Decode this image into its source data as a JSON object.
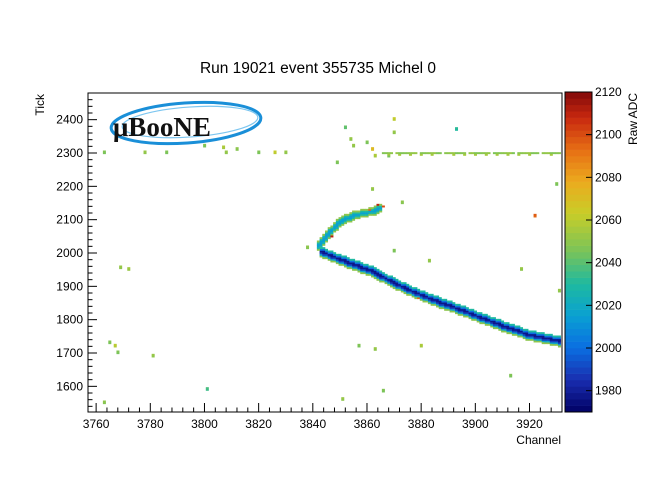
{
  "chart_data": {
    "type": "heatmap",
    "title": "Run 19021 event 355735 Michel 0",
    "xlabel": "Channel",
    "ylabel": "Tick",
    "zlabel": "Raw ADC",
    "xlim": [
      3757,
      3932
    ],
    "ylim": [
      1523,
      2480
    ],
    "zlim": [
      1970,
      2120
    ],
    "x_ticks": [
      3760,
      3780,
      3800,
      3820,
      3840,
      3860,
      3880,
      3900,
      3920
    ],
    "y_ticks": [
      1600,
      1700,
      1800,
      1900,
      2000,
      2100,
      2200,
      2300,
      2400
    ],
    "z_ticks": [
      1980,
      2000,
      2020,
      2040,
      2060,
      2080,
      2100,
      2120
    ],
    "grid": false,
    "logo": "μBooNE",
    "tracks": [
      {
        "name": "muon-track",
        "points": [
          [
            3843,
            2005
          ],
          [
            3852,
            1975
          ],
          [
            3862,
            1945
          ],
          [
            3874,
            1895
          ],
          [
            3886,
            1855
          ],
          [
            3898,
            1820
          ],
          [
            3910,
            1782
          ],
          [
            3920,
            1755
          ],
          [
            3932,
            1735
          ]
        ],
        "halfwidth": 14,
        "core_adc": 1975,
        "edge_adc": 2050
      },
      {
        "name": "michel-electron-track",
        "points": [
          [
            3842,
            2020
          ],
          [
            3846,
            2060
          ],
          [
            3850,
            2095
          ],
          [
            3856,
            2115
          ],
          [
            3862,
            2125
          ],
          [
            3865,
            2135
          ]
        ],
        "halfwidth": 10,
        "core_adc": 2015,
        "edge_adc": 2050
      }
    ],
    "band": {
      "y": 2300,
      "x_from": 3866,
      "x_to": 3932,
      "adc": 2052
    },
    "hot_pixels": [
      {
        "x": 3847,
        "y": 2049,
        "adc": 2110
      },
      {
        "x": 3864,
        "y": 2143,
        "adc": 2110
      },
      {
        "x": 3866,
        "y": 2140,
        "adc": 2100
      },
      {
        "x": 3861,
        "y": 2129,
        "adc": 2095
      },
      {
        "x": 3874,
        "y": 1895,
        "adc": 2110
      },
      {
        "x": 3865,
        "y": 1930,
        "adc": 2100
      },
      {
        "x": 3879,
        "y": 1866,
        "adc": 2095
      }
    ],
    "noise": [
      {
        "x": 3763,
        "y": 2300,
        "adc": 2045
      },
      {
        "x": 3778,
        "y": 2300,
        "adc": 2050
      },
      {
        "x": 3786,
        "y": 2300,
        "adc": 2045
      },
      {
        "x": 3800,
        "y": 2318,
        "adc": 2045
      },
      {
        "x": 3807,
        "y": 2314,
        "adc": 2055
      },
      {
        "x": 3808,
        "y": 2300,
        "adc": 2050
      },
      {
        "x": 3812,
        "y": 2310,
        "adc": 2048
      },
      {
        "x": 3820,
        "y": 2300,
        "adc": 2045
      },
      {
        "x": 3826,
        "y": 2300,
        "adc": 2060
      },
      {
        "x": 3830,
        "y": 2300,
        "adc": 2050
      },
      {
        "x": 3852,
        "y": 2375,
        "adc": 2040
      },
      {
        "x": 3854,
        "y": 2338,
        "adc": 2050
      },
      {
        "x": 3855,
        "y": 2320,
        "adc": 2050
      },
      {
        "x": 3860,
        "y": 2328,
        "adc": 2045
      },
      {
        "x": 3862,
        "y": 2310,
        "adc": 2070
      },
      {
        "x": 3863,
        "y": 2290,
        "adc": 2055
      },
      {
        "x": 3868,
        "y": 2292,
        "adc": 2045
      },
      {
        "x": 3870,
        "y": 2400,
        "adc": 2060
      },
      {
        "x": 3870,
        "y": 2360,
        "adc": 2050
      },
      {
        "x": 3849,
        "y": 2270,
        "adc": 2045
      },
      {
        "x": 3893,
        "y": 2370,
        "adc": 2030
      },
      {
        "x": 3862,
        "y": 2192,
        "adc": 2050
      },
      {
        "x": 3873,
        "y": 2152,
        "adc": 2048
      },
      {
        "x": 3870,
        "y": 2005,
        "adc": 2045
      },
      {
        "x": 3883,
        "y": 1975,
        "adc": 2050
      },
      {
        "x": 3838,
        "y": 2015,
        "adc": 2048
      },
      {
        "x": 3769,
        "y": 1955,
        "adc": 2050
      },
      {
        "x": 3772,
        "y": 1950,
        "adc": 2052
      },
      {
        "x": 3765,
        "y": 1730,
        "adc": 2045
      },
      {
        "x": 3767,
        "y": 1718,
        "adc": 2058
      },
      {
        "x": 3768,
        "y": 1700,
        "adc": 2045
      },
      {
        "x": 3781,
        "y": 1690,
        "adc": 2050
      },
      {
        "x": 3801,
        "y": 1592,
        "adc": 2035
      },
      {
        "x": 3763,
        "y": 1550,
        "adc": 2048
      },
      {
        "x": 3851,
        "y": 1562,
        "adc": 2050
      },
      {
        "x": 3857,
        "y": 1718,
        "adc": 2045
      },
      {
        "x": 3863,
        "y": 1710,
        "adc": 2050
      },
      {
        "x": 3866,
        "y": 1583,
        "adc": 2045
      },
      {
        "x": 3880,
        "y": 1720,
        "adc": 2055
      },
      {
        "x": 3913,
        "y": 1630,
        "adc": 2045
      },
      {
        "x": 3917,
        "y": 1950,
        "adc": 2050
      },
      {
        "x": 3922,
        "y": 2108,
        "adc": 2095
      },
      {
        "x": 3930,
        "y": 2205,
        "adc": 2045
      },
      {
        "x": 3931,
        "y": 1885,
        "adc": 2050
      }
    ]
  }
}
